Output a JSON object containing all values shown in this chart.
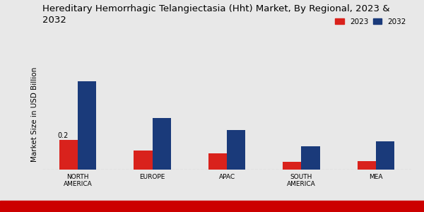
{
  "title": "Hereditary Hemorrhagic Telangiectasia (Hht) Market, By Regional, 2023 &\n2032",
  "ylabel": "Market Size in USD Billion",
  "categories": [
    "NORTH\nAMERICA",
    "EUROPE",
    "APAC",
    "SOUTH\nAMERICA",
    "MEA"
  ],
  "values_2023": [
    0.2,
    0.13,
    0.11,
    0.055,
    0.06
  ],
  "values_2032": [
    0.6,
    0.35,
    0.27,
    0.16,
    0.19
  ],
  "color_2023": "#d9221c",
  "color_2032": "#1a3a7a",
  "bar_width": 0.25,
  "annotation_text": "0.2",
  "annotation_bar": 0,
  "legend_labels": [
    "2023",
    "2032"
  ],
  "background_color": "#e8e8e8",
  "ylim": [
    0,
    0.75
  ],
  "title_fontsize": 9.5,
  "axis_label_fontsize": 7.5,
  "tick_fontsize": 6.5,
  "legend_fontsize": 7.5,
  "red_strip_color": "#cc0000"
}
